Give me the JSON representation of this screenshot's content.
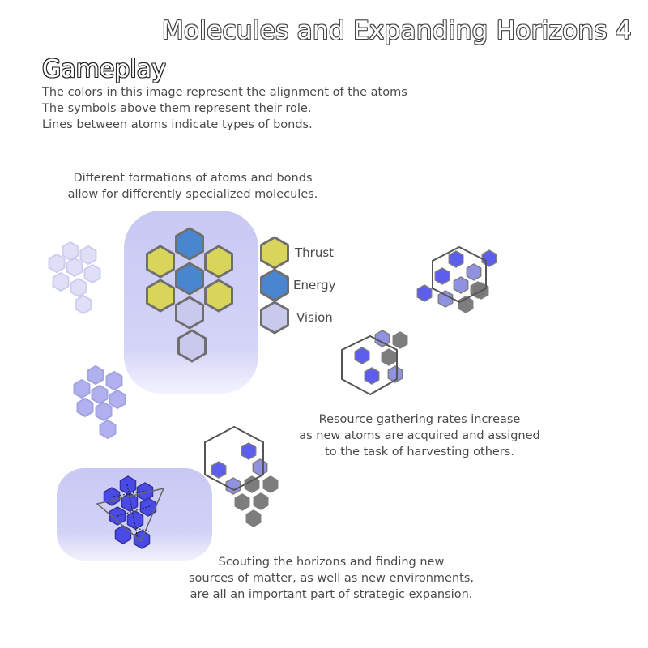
{
  "title": "Molecules and Expanding Horizons 4",
  "section_heading": "Gameplay",
  "intro_lines": [
    "The colors in this image represent the alignment of the atoms",
    "The symbols above them represent their role.",
    "Lines between atoms indicate types of bonds."
  ],
  "formations_caption": [
    "Different formations of atoms and bonds",
    "allow for differently specialized molecules."
  ],
  "legend": [
    {
      "label": "Thrust",
      "color": "#d9d45a"
    },
    {
      "label": "Energy",
      "color": "#4a86cf"
    },
    {
      "label": "Vision",
      "color": "#c9c9ee"
    }
  ],
  "resource_caption": [
    "Resource gathering rates increase",
    "as new atoms are acquired and assigned",
    "to the task of harvesting others."
  ],
  "scouting_caption": [
    "Scouting the horizons and finding new",
    "sources of matter, as well as new environments,",
    "are all an important part of strategic expansion."
  ],
  "colors": {
    "thrust": "#d9d45a",
    "energy": "#4a86cf",
    "vision": "#c9c9ee",
    "alignment_blue": "#5555ee",
    "alignment_lavender": "#8c8ce0",
    "neutral_gray": "#777777",
    "panel": "#ccccf6"
  }
}
